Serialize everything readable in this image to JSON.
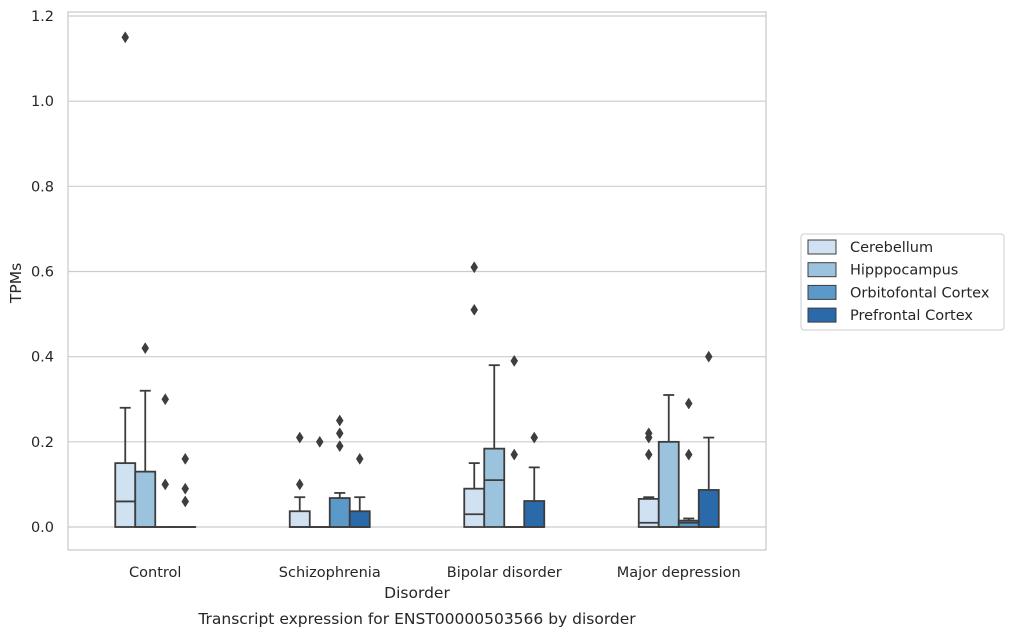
{
  "chart_data": {
    "type": "box",
    "title": "",
    "caption": "Transcript expression for ENST00000503566 by disorder",
    "xlabel": "Disorder",
    "ylabel": "TPMs",
    "ylim": [
      -0.055,
      1.21
    ],
    "yticks": [
      0.0,
      0.2,
      0.4,
      0.6,
      0.8,
      1.0,
      1.2
    ],
    "ytick_labels": [
      "0.0",
      "0.2",
      "0.4",
      "0.6",
      "0.8",
      "1.0",
      "1.2"
    ],
    "grid": "horizontal",
    "legend_position": "right",
    "categories": [
      "Control",
      "Schizophrenia",
      "Bipolar disorder",
      "Major depression"
    ],
    "series": [
      {
        "name": "Cerebellum",
        "color": "#d0e1f2",
        "boxes": [
          {
            "q1": 0.0,
            "median": 0.06,
            "q3": 0.15,
            "whisker_low": 0.0,
            "whisker_high": 0.28,
            "outliers": [
              1.15
            ]
          },
          {
            "q1": 0.0,
            "median": 0.0,
            "q3": 0.037,
            "whisker_low": 0.0,
            "whisker_high": 0.07,
            "outliers": [
              0.21,
              0.1
            ]
          },
          {
            "q1": 0.0,
            "median": 0.03,
            "q3": 0.09,
            "whisker_low": 0.0,
            "whisker_high": 0.15,
            "outliers": [
              0.61,
              0.51
            ]
          },
          {
            "q1": 0.0,
            "median": 0.01,
            "q3": 0.066,
            "whisker_low": 0.0,
            "whisker_high": 0.07,
            "outliers": [
              0.22,
              0.21,
              0.17
            ]
          }
        ]
      },
      {
        "name": "Hipppocampus",
        "color": "#9cc3de",
        "boxes": [
          {
            "q1": 0.0,
            "median": 0.0,
            "q3": 0.13,
            "whisker_low": 0.0,
            "whisker_high": 0.32,
            "outliers": [
              0.42
            ]
          },
          {
            "q1": 0.0,
            "median": 0.0,
            "q3": 0.0,
            "whisker_low": 0.0,
            "whisker_high": 0.0,
            "outliers": [
              0.2
            ]
          },
          {
            "q1": 0.0,
            "median": 0.11,
            "q3": 0.184,
            "whisker_low": 0.0,
            "whisker_high": 0.38,
            "outliers": []
          },
          {
            "q1": 0.0,
            "median": 0.0,
            "q3": 0.2,
            "whisker_low": 0.0,
            "whisker_high": 0.31,
            "outliers": []
          }
        ]
      },
      {
        "name": "Orbitofontal Cortex",
        "color": "#5b99c9",
        "boxes": [
          {
            "q1": 0.0,
            "median": 0.0,
            "q3": 0.0,
            "whisker_low": 0.0,
            "whisker_high": 0.0,
            "outliers": [
              0.3,
              0.1
            ]
          },
          {
            "q1": 0.0,
            "median": 0.0,
            "q3": 0.068,
            "whisker_low": 0.0,
            "whisker_high": 0.08,
            "outliers": [
              0.25,
              0.22,
              0.19
            ]
          },
          {
            "q1": 0.0,
            "median": 0.0,
            "q3": 0.0,
            "whisker_low": 0.0,
            "whisker_high": 0.0,
            "outliers": [
              0.39,
              0.17
            ]
          },
          {
            "q1": 0.0,
            "median": 0.01,
            "q3": 0.015,
            "whisker_low": 0.0,
            "whisker_high": 0.02,
            "outliers": [
              0.29,
              0.17
            ]
          }
        ]
      },
      {
        "name": "Prefrontal Cortex",
        "color": "#2a6aab",
        "boxes": [
          {
            "q1": 0.0,
            "median": 0.0,
            "q3": 0.0,
            "whisker_low": 0.0,
            "whisker_high": 0.0,
            "outliers": [
              0.16,
              0.09,
              0.06
            ]
          },
          {
            "q1": 0.0,
            "median": 0.0,
            "q3": 0.037,
            "whisker_low": 0.0,
            "whisker_high": 0.07,
            "outliers": [
              0.16
            ]
          },
          {
            "q1": 0.0,
            "median": 0.0,
            "q3": 0.061,
            "whisker_low": 0.0,
            "whisker_high": 0.14,
            "outliers": [
              0.21
            ]
          },
          {
            "q1": 0.0,
            "median": 0.0,
            "q3": 0.087,
            "whisker_low": 0.0,
            "whisker_high": 0.21,
            "outliers": [
              0.4
            ]
          }
        ]
      }
    ],
    "style": {
      "box_edge_color": "#3d3d3d",
      "grid_color": "#cccccc",
      "frame_color": "#cccccc"
    }
  }
}
